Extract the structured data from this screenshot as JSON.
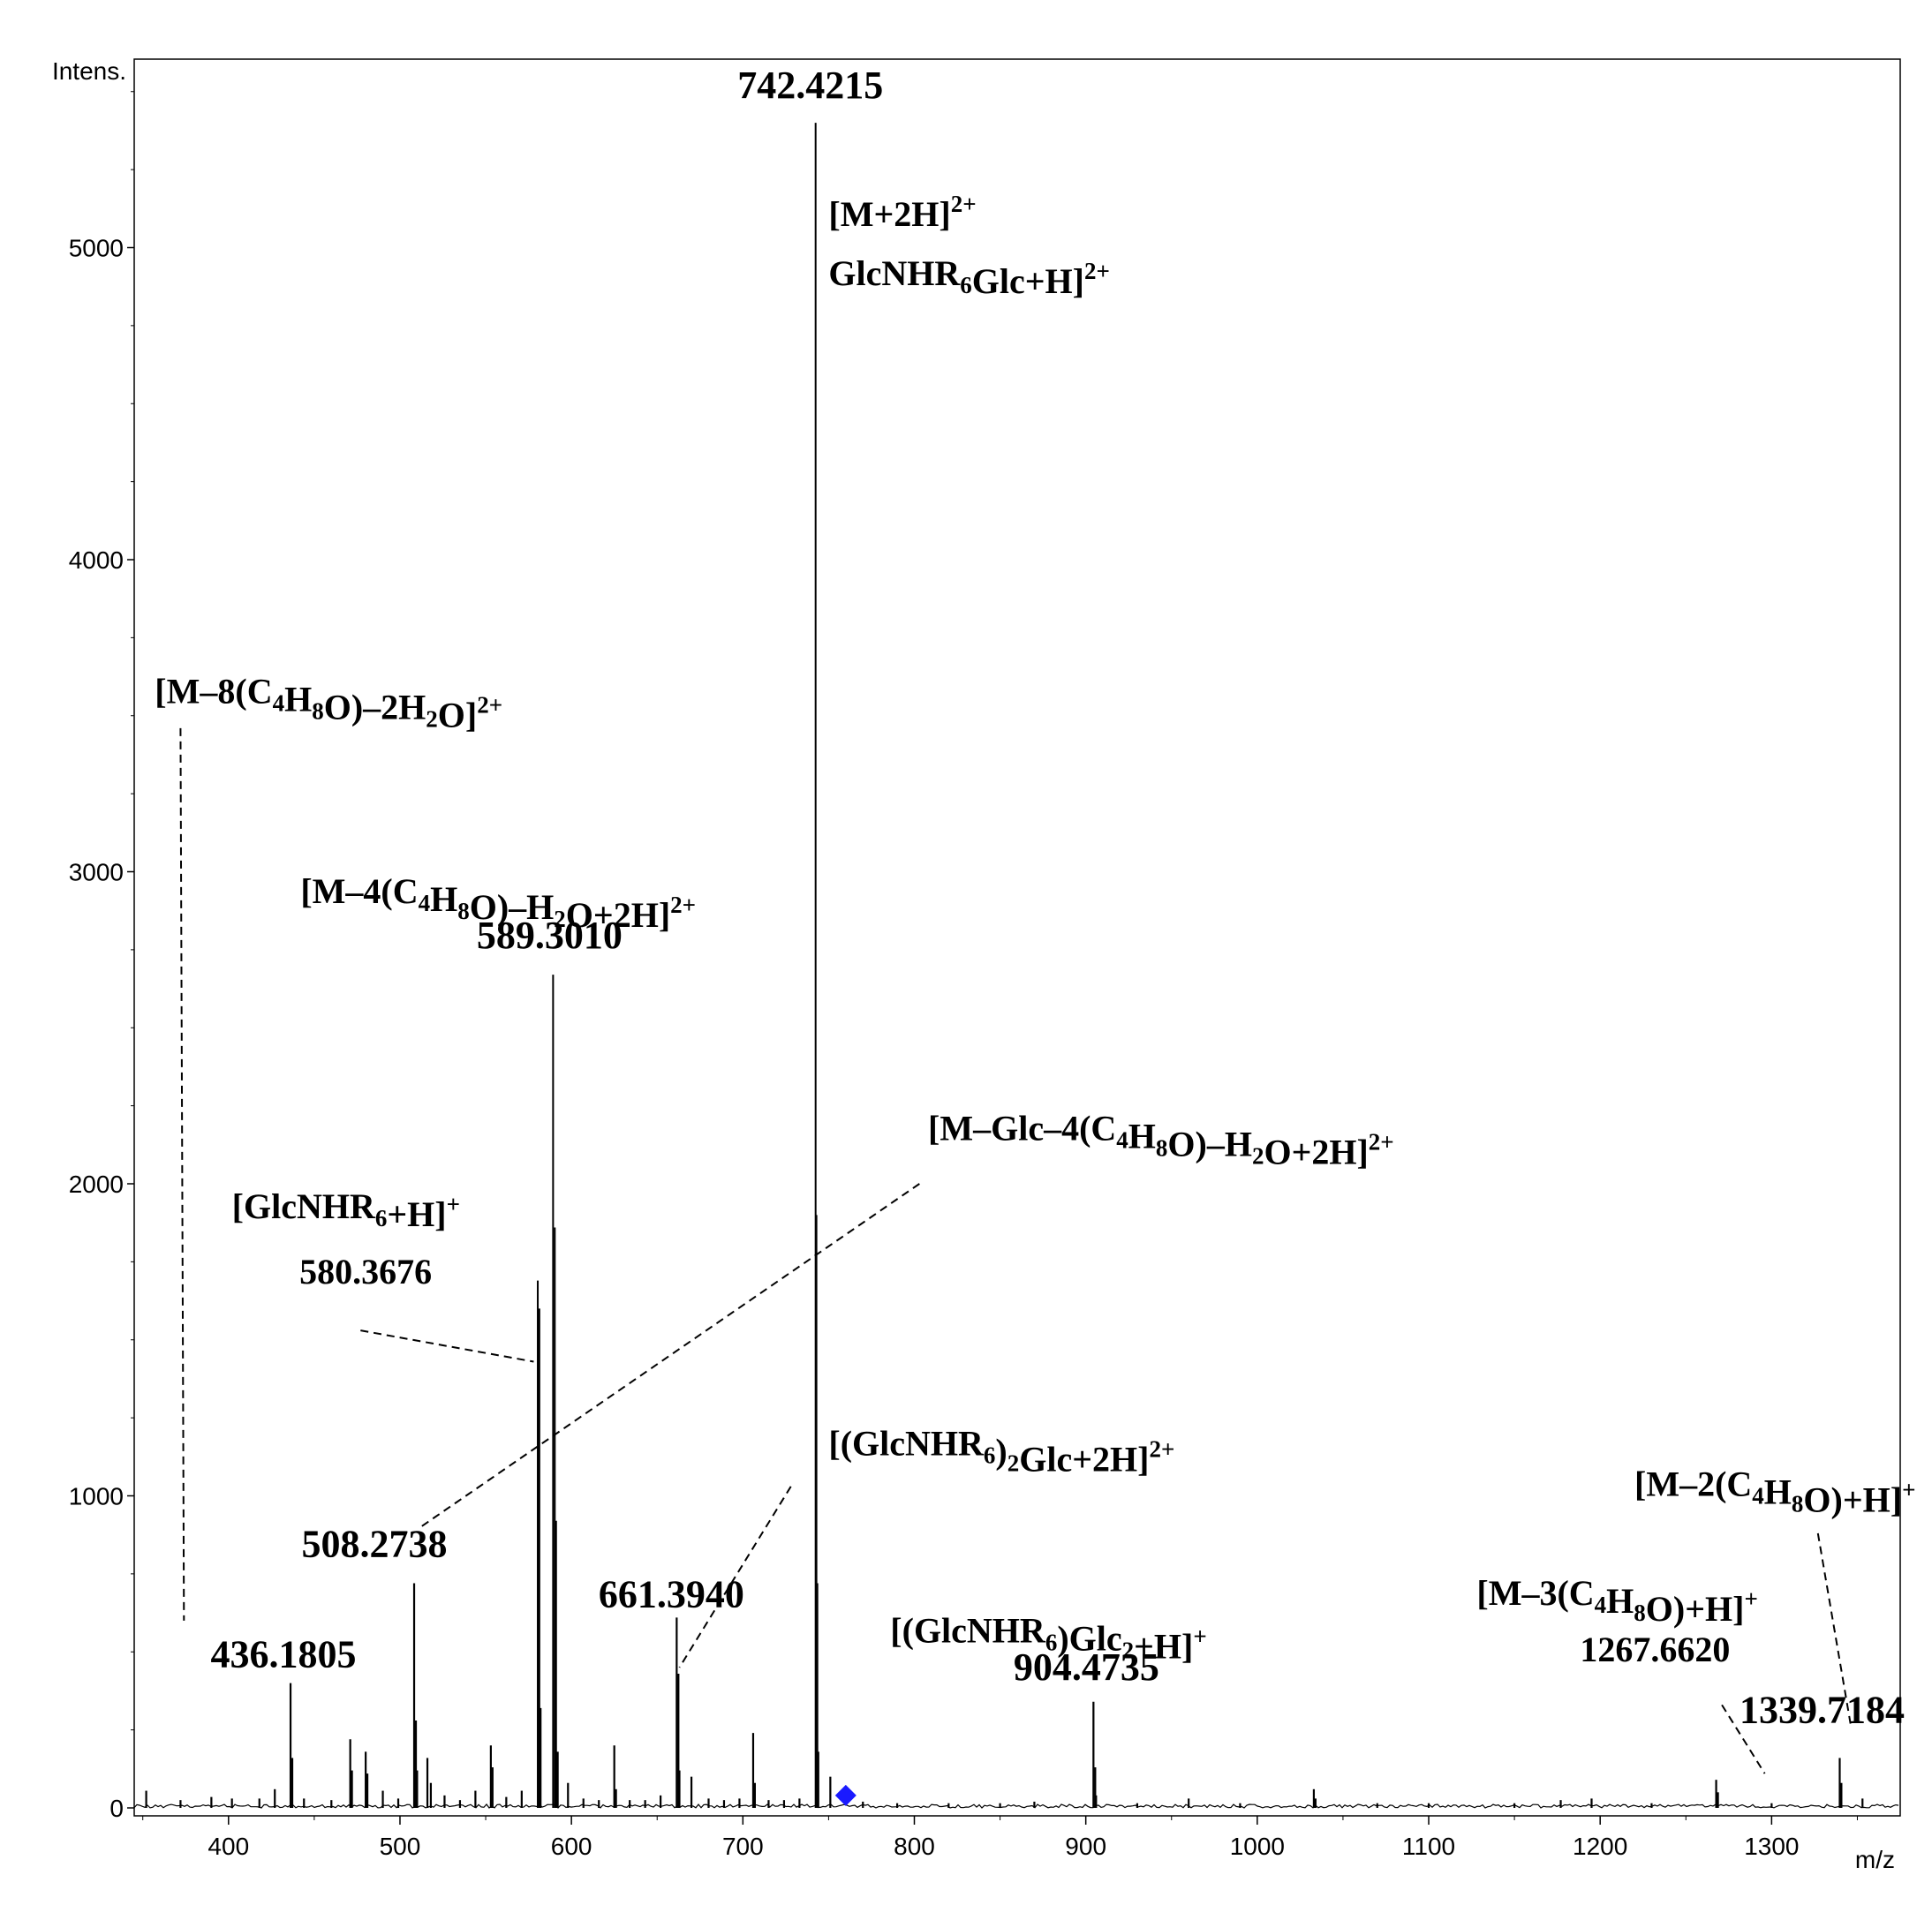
{
  "chart_data": {
    "type": "line",
    "title": "",
    "xlabel": "m/z",
    "ylabel": "Intens.",
    "xlim": [
      345,
      1375
    ],
    "ylim": [
      0,
      5600
    ],
    "x_ticks": [
      400,
      500,
      600,
      700,
      800,
      900,
      1000,
      1100,
      1200,
      1300
    ],
    "y_ticks": [
      0,
      1000,
      2000,
      3000,
      4000,
      5000
    ],
    "grid": false,
    "marker_color": "#1a1aff",
    "precursor_marker": {
      "mz": 760,
      "intensity": 40
    },
    "peaks": [
      {
        "mz": 352,
        "intensity": 55
      },
      {
        "mz": 372,
        "intensity": 25
      },
      {
        "mz": 390,
        "intensity": 35
      },
      {
        "mz": 402,
        "intensity": 30
      },
      {
        "mz": 418,
        "intensity": 30
      },
      {
        "mz": 427,
        "intensity": 60
      },
      {
        "mz": 436.18,
        "intensity": 400
      },
      {
        "mz": 437.2,
        "intensity": 160
      },
      {
        "mz": 444,
        "intensity": 30
      },
      {
        "mz": 460,
        "intensity": 25
      },
      {
        "mz": 471,
        "intensity": 220
      },
      {
        "mz": 472,
        "intensity": 120
      },
      {
        "mz": 480,
        "intensity": 180
      },
      {
        "mz": 481,
        "intensity": 110
      },
      {
        "mz": 490,
        "intensity": 55
      },
      {
        "mz": 499,
        "intensity": 30
      },
      {
        "mz": 508.27,
        "intensity": 720
      },
      {
        "mz": 509.3,
        "intensity": 280
      },
      {
        "mz": 510,
        "intensity": 120
      },
      {
        "mz": 516,
        "intensity": 160
      },
      {
        "mz": 518,
        "intensity": 80
      },
      {
        "mz": 526,
        "intensity": 40
      },
      {
        "mz": 535,
        "intensity": 25
      },
      {
        "mz": 544,
        "intensity": 55
      },
      {
        "mz": 553,
        "intensity": 200
      },
      {
        "mz": 554,
        "intensity": 130
      },
      {
        "mz": 562,
        "intensity": 35
      },
      {
        "mz": 571,
        "intensity": 55
      },
      {
        "mz": 580.37,
        "intensity": 1690
      },
      {
        "mz": 581.3,
        "intensity": 1600
      },
      {
        "mz": 582,
        "intensity": 320
      },
      {
        "mz": 589.3,
        "intensity": 2670
      },
      {
        "mz": 590.3,
        "intensity": 1860
      },
      {
        "mz": 591,
        "intensity": 920
      },
      {
        "mz": 592,
        "intensity": 180
      },
      {
        "mz": 598,
        "intensity": 80
      },
      {
        "mz": 607,
        "intensity": 30
      },
      {
        "mz": 616,
        "intensity": 25
      },
      {
        "mz": 625,
        "intensity": 200
      },
      {
        "mz": 626,
        "intensity": 60
      },
      {
        "mz": 634,
        "intensity": 25
      },
      {
        "mz": 643,
        "intensity": 25
      },
      {
        "mz": 652,
        "intensity": 40
      },
      {
        "mz": 661.39,
        "intensity": 610
      },
      {
        "mz": 662.4,
        "intensity": 430
      },
      {
        "mz": 663,
        "intensity": 120
      },
      {
        "mz": 670,
        "intensity": 100
      },
      {
        "mz": 680,
        "intensity": 30
      },
      {
        "mz": 689,
        "intensity": 25
      },
      {
        "mz": 698,
        "intensity": 30
      },
      {
        "mz": 706,
        "intensity": 240
      },
      {
        "mz": 707,
        "intensity": 80
      },
      {
        "mz": 715,
        "intensity": 25
      },
      {
        "mz": 724,
        "intensity": 25
      },
      {
        "mz": 733,
        "intensity": 30
      },
      {
        "mz": 742.42,
        "intensity": 5400
      },
      {
        "mz": 742.9,
        "intensity": 1900
      },
      {
        "mz": 743.4,
        "intensity": 720
      },
      {
        "mz": 744,
        "intensity": 180
      },
      {
        "mz": 751,
        "intensity": 100
      },
      {
        "mz": 770,
        "intensity": 20
      },
      {
        "mz": 790,
        "intensity": 15
      },
      {
        "mz": 820,
        "intensity": 15
      },
      {
        "mz": 850,
        "intensity": 15
      },
      {
        "mz": 870,
        "intensity": 20
      },
      {
        "mz": 904.47,
        "intensity": 340
      },
      {
        "mz": 905.5,
        "intensity": 130
      },
      {
        "mz": 906,
        "intensity": 40
      },
      {
        "mz": 930,
        "intensity": 15
      },
      {
        "mz": 960,
        "intensity": 30
      },
      {
        "mz": 990,
        "intensity": 15
      },
      {
        "mz": 1033,
        "intensity": 60
      },
      {
        "mz": 1034,
        "intensity": 30
      },
      {
        "mz": 1070,
        "intensity": 15
      },
      {
        "mz": 1100,
        "intensity": 15
      },
      {
        "mz": 1150,
        "intensity": 15
      },
      {
        "mz": 1177,
        "intensity": 25
      },
      {
        "mz": 1195,
        "intensity": 30
      },
      {
        "mz": 1230,
        "intensity": 15
      },
      {
        "mz": 1267.66,
        "intensity": 90
      },
      {
        "mz": 1268.7,
        "intensity": 50
      },
      {
        "mz": 1300,
        "intensity": 15
      },
      {
        "mz": 1339.72,
        "intensity": 160
      },
      {
        "mz": 1340.7,
        "intensity": 80
      },
      {
        "mz": 1353,
        "intensity": 30
      }
    ],
    "peak_labels": [
      {
        "id": "pl-742",
        "text": "742.4215",
        "mz": 742.42,
        "intensity": 5400,
        "size": "lg",
        "anchor": "middle",
        "dx": -6,
        "dy": -28
      },
      {
        "id": "pl-589",
        "text": "589.3010",
        "mz": 589.3,
        "intensity": 2670,
        "size": "lg",
        "anchor": "middle",
        "dx": -4,
        "dy": -30
      },
      {
        "id": "pl-580",
        "text": "580.3676",
        "mz": 480,
        "intensity": 1680,
        "size": "sm",
        "anchor": "middle",
        "dx": 0,
        "dy": 0
      },
      {
        "id": "pl-508",
        "text": "508.2738",
        "mz": 508.27,
        "intensity": 720,
        "size": "lg",
        "anchor": "middle",
        "dx": -45,
        "dy": -30
      },
      {
        "id": "pl-436",
        "text": "436.1805",
        "mz": 436.18,
        "intensity": 400,
        "size": "lg",
        "anchor": "middle",
        "dx": -8,
        "dy": -18
      },
      {
        "id": "pl-661",
        "text": "661.3940",
        "mz": 661.39,
        "intensity": 610,
        "size": "lg",
        "anchor": "middle",
        "dx": -6,
        "dy": -12
      },
      {
        "id": "pl-904",
        "text": "904.4735",
        "mz": 904.47,
        "intensity": 340,
        "size": "lg",
        "anchor": "middle",
        "dx": -8,
        "dy": -25
      },
      {
        "id": "pl-1267",
        "text": "1267.6620",
        "mz": 1232,
        "intensity": 470,
        "size": "sm",
        "anchor": "middle",
        "dx": 0,
        "dy": 0
      },
      {
        "id": "pl-1339",
        "text": "1339.7184",
        "mz": 1339.72,
        "intensity": 160,
        "size": "lg",
        "anchor": "middle",
        "dx": -20,
        "dy": -40
      }
    ],
    "annotations": [
      {
        "id": "ann-m2h",
        "mz": 750,
        "intensity": 5070,
        "parts": [
          [
            "[M+2H]",
            ""
          ],
          [
            "2+",
            "sup"
          ]
        ]
      },
      {
        "id": "ann-glcnhr6glc",
        "mz": 750,
        "intensity": 4880,
        "parts": [
          [
            "GlcNHR",
            ""
          ],
          [
            "6",
            "sub"
          ],
          [
            "Glc+H]",
            ""
          ],
          [
            "2+",
            "sup"
          ]
        ]
      },
      {
        "id": "ann-m8",
        "mz": 357,
        "intensity": 3540,
        "parts": [
          [
            "[M–8(C",
            ""
          ],
          [
            "4",
            "sub"
          ],
          [
            "H",
            ""
          ],
          [
            "8",
            "sub"
          ],
          [
            "O)–2H",
            ""
          ],
          [
            "2",
            "sub"
          ],
          [
            "O]",
            ""
          ],
          [
            "2+",
            "sup"
          ]
        ]
      },
      {
        "id": "ann-m4",
        "mz": 442,
        "intensity": 2900,
        "parts": [
          [
            "[M–4(C",
            ""
          ],
          [
            "4",
            "sub"
          ],
          [
            "H",
            ""
          ],
          [
            "8",
            "sub"
          ],
          [
            "O)–H",
            ""
          ],
          [
            "2",
            "sub"
          ],
          [
            "O+2H]",
            ""
          ],
          [
            "2+",
            "sup"
          ]
        ]
      },
      {
        "id": "ann-mglc4",
        "mz": 808,
        "intensity": 2140,
        "parts": [
          [
            "[M–Glc–4(C",
            ""
          ],
          [
            "4",
            "sub"
          ],
          [
            "H",
            ""
          ],
          [
            "8",
            "sub"
          ],
          [
            "O)–H",
            ""
          ],
          [
            "2",
            "sub"
          ],
          [
            "O+2H]",
            ""
          ],
          [
            "2+",
            "sup"
          ]
        ]
      },
      {
        "id": "ann-glcnhr6h",
        "mz": 402,
        "intensity": 1890,
        "parts": [
          [
            "[GlcNHR",
            ""
          ],
          [
            "6",
            "sub"
          ],
          [
            "+H]",
            ""
          ],
          [
            "+",
            "sup"
          ]
        ]
      },
      {
        "id": "ann-glcnhr6-2glc",
        "mz": 750,
        "intensity": 1130,
        "parts": [
          [
            "[(GlcNHR",
            ""
          ],
          [
            "6",
            "sub"
          ],
          [
            ")",
            ""
          ],
          [
            "2",
            "sub"
          ],
          [
            "Glc+2H]",
            ""
          ],
          [
            "2+",
            "sup"
          ]
        ]
      },
      {
        "id": "ann-glcnhr6glc2",
        "mz": 786,
        "intensity": 530,
        "parts": [
          [
            "[(GlcNHR",
            ""
          ],
          [
            "6",
            "sub"
          ],
          [
            ")Glc",
            ""
          ],
          [
            "2",
            "sub"
          ],
          [
            "+H]",
            ""
          ],
          [
            "+",
            "sup"
          ]
        ]
      },
      {
        "id": "ann-m2c4",
        "mz": 1220,
        "intensity": 1000,
        "parts": [
          [
            "[M–2(C",
            ""
          ],
          [
            "4",
            "sub"
          ],
          [
            "H",
            ""
          ],
          [
            "8",
            "sub"
          ],
          [
            "O)+H]",
            ""
          ],
          [
            "+",
            "sup"
          ]
        ]
      },
      {
        "id": "ann-m3c4",
        "mz": 1128,
        "intensity": 650,
        "parts": [
          [
            "[M–3(C",
            ""
          ],
          [
            "4",
            "sub"
          ],
          [
            "H",
            ""
          ],
          [
            "8",
            "sub"
          ],
          [
            "O)+H]",
            ""
          ],
          [
            "+",
            "sup"
          ]
        ]
      }
    ],
    "leader_lines": [
      {
        "id": "lead-m8",
        "from": [
          372,
          3460
        ],
        "to": [
          374,
          600
        ]
      },
      {
        "id": "lead-580",
        "from": [
          477,
          1530
        ],
        "to": [
          578,
          1430
        ]
      },
      {
        "id": "lead-mglc4",
        "from": [
          803,
          2000
        ],
        "to": [
          512,
          900
        ]
      },
      {
        "id": "lead-glcnhr6-2glc",
        "from": [
          728,
          1030
        ],
        "to": [
          663,
          450
        ]
      },
      {
        "id": "lead-1267",
        "from": [
          1271,
          330
        ],
        "to": [
          1296,
          110
        ]
      },
      {
        "id": "lead-m2c4",
        "from": [
          1327,
          880
        ],
        "to": [
          1346,
          270
        ]
      }
    ]
  }
}
